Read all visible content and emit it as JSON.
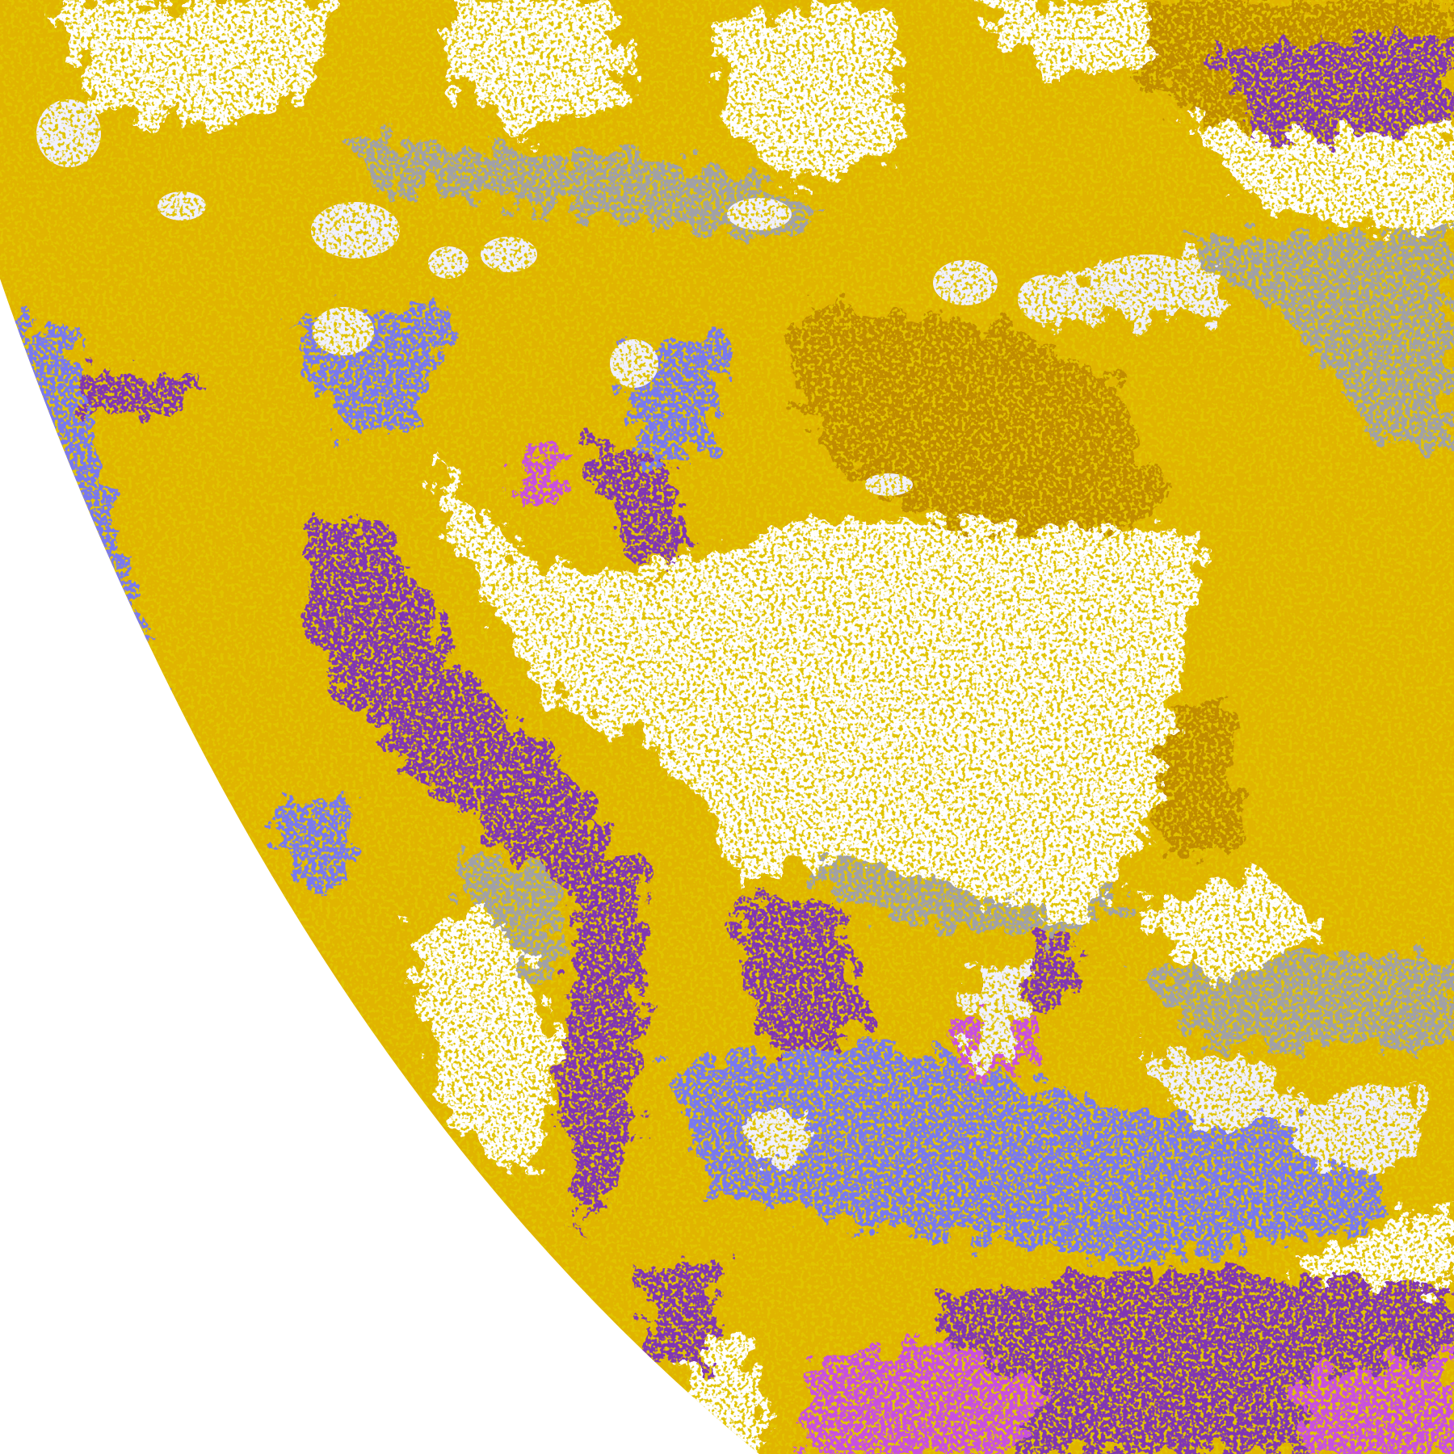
{
  "map": {
    "background_color": "#ffffff",
    "class_colors": {
      "clear": "#ffffff",
      "low_cloud": "#e0b400",
      "low_cloud_dark": "#c08c00",
      "mid_cloud": "#a0a0a8",
      "high_thin": "#7878f0",
      "high_thick": "#8034b4",
      "overshooting": "#c850e0",
      "deep_convective": "#f0f0ff"
    }
  }
}
